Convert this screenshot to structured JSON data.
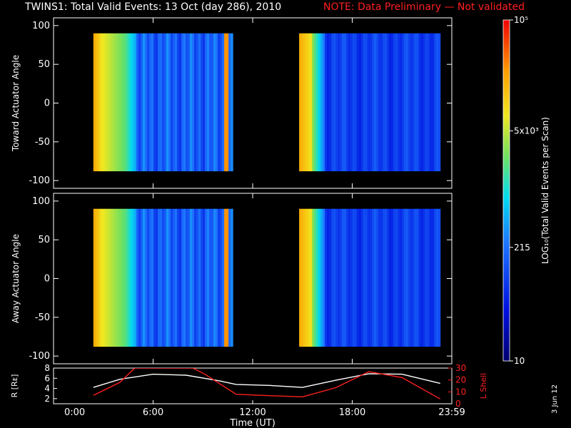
{
  "title": "TWINS1: Total Valid Events: 13 Oct (day 286), 2010",
  "note": "NOTE: Data Preliminary — Not validated",
  "note_color": "#ff2020",
  "side_date": "3 Jun 12",
  "chart_data": [
    {
      "type": "heatmap",
      "ylabel": "Toward Actuator Angle",
      "ylim": [
        -110,
        110
      ],
      "yticks": [
        100,
        50,
        0,
        -50,
        -100
      ],
      "x_range_hours": [
        0,
        24
      ],
      "data_segments_hours": [
        [
          2.4,
          10.8
        ],
        [
          14.8,
          23.3
        ]
      ],
      "angle_range": [
        -88,
        90
      ]
    },
    {
      "type": "heatmap",
      "ylabel": "Away Actuator Angle",
      "ylim": [
        -110,
        110
      ],
      "yticks": [
        100,
        50,
        0,
        -50,
        -100
      ],
      "x_range_hours": [
        0,
        24
      ],
      "data_segments_hours": [
        [
          2.4,
          10.8
        ],
        [
          14.8,
          23.3
        ]
      ],
      "angle_range": [
        -88,
        90
      ]
    },
    {
      "type": "line",
      "xlabel": "Time (UT)",
      "xticks": [
        "0:00",
        "6:00",
        "12:00",
        "18:00",
        "23:59"
      ],
      "xtick_hours": [
        0,
        6,
        12,
        18,
        24
      ],
      "ylabel_left": "R [Rᴇ]",
      "ylim_left": [
        1,
        8
      ],
      "yticks_left": [
        2,
        4,
        6,
        8
      ],
      "ylabel_right": "L Shell",
      "ylim_right": [
        0,
        30
      ],
      "yticks_right": [
        10,
        20,
        30
      ],
      "series": [
        {
          "color": "#ffffff",
          "x": [
            2.4,
            4,
            6,
            8,
            10,
            11,
            13,
            15,
            17,
            19,
            21,
            23.3
          ],
          "y": [
            4.2,
            5.8,
            6.8,
            6.6,
            5.5,
            4.8,
            4.6,
            4.2,
            5.6,
            6.9,
            6.8,
            5.0
          ]
        },
        {
          "color": "#ff2020",
          "x": [
            2.4,
            4,
            4.9,
            8.4,
            9.1,
            11,
            13,
            15,
            17,
            19,
            21,
            23.3
          ],
          "y": [
            7,
            18,
            30,
            30,
            25,
            8,
            6.8,
            5.8,
            13.5,
            27,
            22,
            4
          ]
        }
      ]
    }
  ],
  "colorbar": {
    "label": "LOG₁₀(Total Valid Events per Scan)",
    "ticks": [
      "10⁵",
      "5x10³",
      "215",
      "10"
    ],
    "tick_values": [
      100000,
      5000,
      215,
      10
    ],
    "range": [
      10,
      100000
    ]
  }
}
